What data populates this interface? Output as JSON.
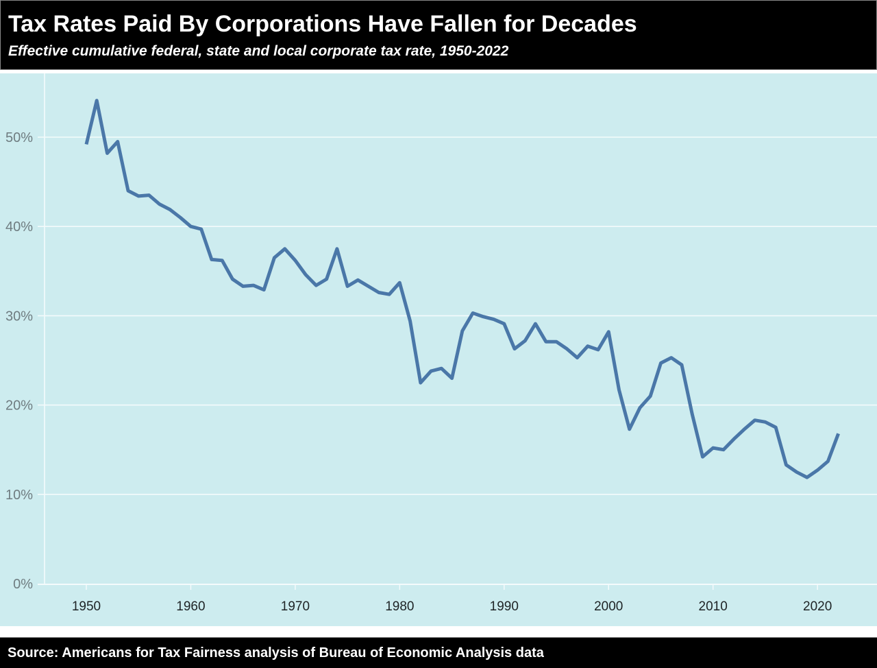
{
  "header": {
    "title": "Tax Rates Paid By Corporations Have Fallen for Decades",
    "subtitle": "Effective cumulative federal, state and local corporate tax rate, 1950-2022"
  },
  "footer": {
    "source": "Source: Americans for Tax Fairness analysis of Bureau of Economic Analysis data"
  },
  "colors": {
    "line": "#4a77a8",
    "panel_background": "#cdecef",
    "gridline": "#f4fbfc",
    "header_background": "#000000",
    "header_text": "#ffffff"
  },
  "chart_data": {
    "type": "line",
    "title": "Tax Rates Paid By Corporations Have Fallen for Decades",
    "subtitle": "Effective cumulative federal, state and local corporate tax rate, 1950-2022",
    "xlabel": "",
    "ylabel": "",
    "xlim": [
      1945.7,
      2026.2
    ],
    "ylim": [
      0,
      55
    ],
    "grid": "horizontal",
    "legend": "none",
    "x_ticks": [
      1950,
      1960,
      1970,
      1980,
      1990,
      2000,
      2010,
      2020
    ],
    "x_tick_labels": [
      "1950",
      "1960",
      "1970",
      "1980",
      "1990",
      "2000",
      "2010",
      "2020"
    ],
    "y_ticks": [
      0,
      10,
      20,
      30,
      40,
      50
    ],
    "y_tick_labels": [
      "0%",
      "10%",
      "20%",
      "30%",
      "40%",
      "50%"
    ],
    "series": [
      {
        "name": "Effective corporate tax rate (%)",
        "x": [
          1950,
          1951,
          1952,
          1953,
          1954,
          1955,
          1956,
          1957,
          1958,
          1959,
          1960,
          1961,
          1962,
          1963,
          1964,
          1965,
          1966,
          1967,
          1968,
          1969,
          1970,
          1971,
          1972,
          1973,
          1974,
          1975,
          1976,
          1977,
          1978,
          1979,
          1980,
          1981,
          1982,
          1983,
          1984,
          1985,
          1986,
          1987,
          1988,
          1989,
          1990,
          1991,
          1992,
          1993,
          1994,
          1995,
          1996,
          1997,
          1998,
          1999,
          2000,
          2001,
          2002,
          2003,
          2004,
          2005,
          2006,
          2007,
          2008,
          2009,
          2010,
          2011,
          2012,
          2013,
          2014,
          2015,
          2016,
          2017,
          2018,
          2019,
          2020,
          2021,
          2022
        ],
        "values": [
          49.2,
          54.1,
          48.2,
          49.5,
          44.0,
          43.4,
          43.5,
          42.5,
          41.9,
          41.0,
          40.0,
          39.7,
          36.3,
          36.2,
          34.1,
          33.3,
          33.4,
          32.9,
          36.5,
          37.5,
          36.2,
          34.6,
          33.4,
          34.1,
          37.5,
          33.3,
          34.0,
          33.3,
          32.6,
          32.4,
          33.7,
          29.4,
          22.5,
          23.8,
          24.1,
          23.0,
          28.3,
          30.3,
          29.9,
          29.6,
          29.1,
          26.3,
          27.2,
          29.1,
          27.1,
          27.1,
          26.3,
          25.3,
          26.6,
          26.2,
          28.2,
          21.7,
          17.3,
          19.7,
          21.0,
          24.7,
          25.3,
          24.5,
          19.0,
          14.2,
          15.2,
          15.0,
          16.2,
          17.3,
          18.3,
          18.1,
          17.5,
          13.3,
          12.5,
          11.9,
          12.7,
          13.7,
          16.8
        ]
      }
    ]
  }
}
